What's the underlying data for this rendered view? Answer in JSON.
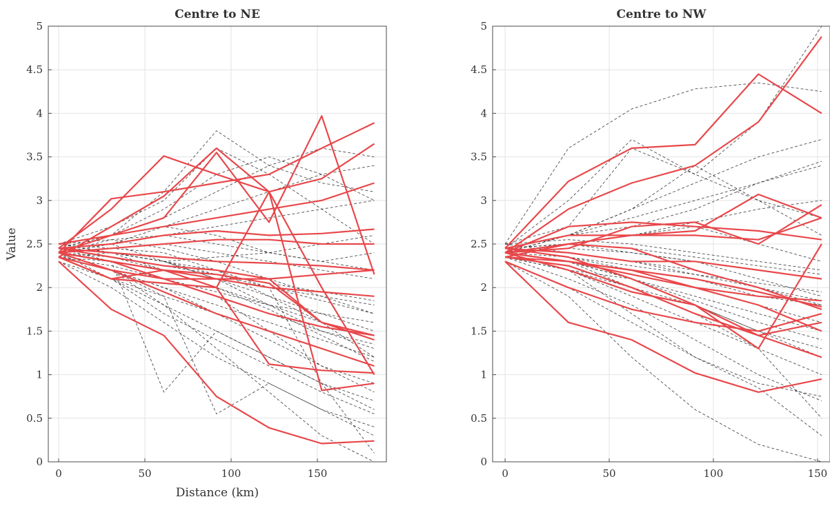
{
  "chart_data": [
    {
      "type": "line",
      "title": "Centre to NE",
      "xlabel": "Distance (km)",
      "ylabel": "Value",
      "xlim": [
        -6,
        190
      ],
      "ylim": [
        0,
        5
      ],
      "xticks": [
        0,
        50,
        100,
        150
      ],
      "xtick_labels": [
        "0",
        "50",
        "100",
        "150"
      ],
      "yticks": [
        0,
        0.5,
        1,
        1.5,
        2,
        2.5,
        3,
        3.5,
        4,
        4.5,
        5
      ],
      "ytick_labels": [
        "0",
        "0.5",
        "1",
        "1.5",
        "2",
        "2.5",
        "3",
        "3.5",
        "4",
        "4.5",
        "5"
      ],
      "grid": true,
      "x": [
        0,
        30.5,
        61,
        91.5,
        122,
        152.5,
        183
      ],
      "series_groups": [
        {
          "style": "dashed",
          "color": "#2b2b2b",
          "lines": [
            [
              2.45,
              2.4,
              2.3,
              2.1,
              1.9,
              1.7,
              1.5
            ],
            [
              2.4,
              2.55,
              2.45,
              2.3,
              2.1,
              1.9,
              1.7
            ],
            [
              2.35,
              2.2,
              2.0,
              1.8,
              1.6,
              1.4,
              1.2
            ],
            [
              2.5,
              2.6,
              2.7,
              2.9,
              3.1,
              3.3,
              3.4
            ],
            [
              2.4,
              2.3,
              2.1,
              1.9,
              1.5,
              1.1,
              0.8
            ],
            [
              2.45,
              2.5,
              2.3,
              2.1,
              1.8,
              1.5,
              1.3
            ],
            [
              2.3,
              2.0,
              1.6,
              1.2,
              0.9,
              0.6,
              0.3
            ],
            [
              2.4,
              2.6,
              2.9,
              3.3,
              3.5,
              3.3,
              3.0
            ],
            [
              2.5,
              2.4,
              2.2,
              2.0,
              1.8,
              1.6,
              1.4
            ],
            [
              2.35,
              2.1,
              1.9,
              1.7,
              1.5,
              1.3,
              1.1
            ],
            [
              2.4,
              2.45,
              2.5,
              2.4,
              2.3,
              2.2,
              2.1
            ],
            [
              2.45,
              2.3,
              0.8,
              1.5,
              1.2,
              0.9,
              0.7
            ],
            [
              2.4,
              2.2,
              1.9,
              0.55,
              0.9,
              0.6,
              0.4
            ],
            [
              2.5,
              2.7,
              3.0,
              3.6,
              3.3,
              2.9,
              2.5
            ],
            [
              2.35,
              2.25,
              2.1,
              1.95,
              1.8,
              1.7,
              1.6
            ],
            [
              2.4,
              2.5,
              2.6,
              2.7,
              2.8,
              2.9,
              3.0
            ],
            [
              2.45,
              2.4,
              2.3,
              2.2,
              2.0,
              0.9,
              0.1
            ],
            [
              2.4,
              2.3,
              2.2,
              2.1,
              2.0,
              1.9,
              1.8
            ],
            [
              2.3,
              2.1,
              1.8,
              1.5,
              1.2,
              0.9,
              0.6
            ],
            [
              2.5,
              2.55,
              2.6,
              2.5,
              2.4,
              2.3,
              2.2
            ],
            [
              2.4,
              2.6,
              3.1,
              3.8,
              3.4,
              3.2,
              3.1
            ],
            [
              2.35,
              2.2,
              2.0,
              1.7,
              1.4,
              1.1,
              0.9
            ],
            [
              2.45,
              2.35,
              2.25,
              2.15,
              2.05,
              1.95,
              1.85
            ],
            [
              2.4,
              2.2,
              1.8,
              1.3,
              0.8,
              0.3,
              0.0
            ],
            [
              2.5,
              2.45,
              2.4,
              2.2,
              1.9,
              1.6,
              1.2
            ],
            [
              2.4,
              2.5,
              2.7,
              2.6,
              2.4,
              2.3,
              2.4
            ],
            [
              2.35,
              2.3,
              2.1,
              1.9,
              1.7,
              1.5,
              1.35
            ],
            [
              2.45,
              2.6,
              2.8,
              3.1,
              3.4,
              3.6,
              3.5
            ],
            [
              2.4,
              2.1,
              1.7,
              1.4,
              1.1,
              0.8,
              0.55
            ],
            [
              2.5,
              2.4,
              2.3,
              2.35,
              2.4,
              2.5,
              2.6
            ],
            [
              2.4,
              2.35,
              2.2,
              2.0,
              1.75,
              1.45,
              1.15
            ],
            [
              2.35,
              2.4,
              2.3,
              2.15,
              2.0,
              1.85,
              1.7
            ]
          ]
        },
        {
          "style": "solid",
          "color": "#e8474a",
          "lines": [
            [
              2.4,
              3.02,
              3.1,
              3.2,
              3.3,
              3.6,
              3.89
            ],
            [
              2.45,
              2.9,
              3.51,
              3.3,
              3.1,
              3.25,
              3.65
            ],
            [
              2.35,
              2.7,
              3.05,
              3.6,
              3.1,
              2.0,
              1.0
            ],
            [
              2.4,
              2.6,
              2.8,
              3.55,
              2.75,
              3.97,
              2.15
            ],
            [
              2.3,
              1.75,
              1.45,
              0.75,
              0.39,
              0.21,
              0.24
            ],
            [
              2.35,
              2.1,
              2.2,
              2.15,
              2.05,
              1.6,
              1.45
            ],
            [
              2.4,
              2.3,
              2.2,
              2.0,
              1.12,
              1.05,
              1.02
            ],
            [
              2.45,
              2.5,
              2.6,
              2.65,
              2.6,
              2.62,
              2.67
            ],
            [
              2.4,
              2.3,
              2.2,
              2.1,
              2.0,
              1.95,
              1.9
            ],
            [
              2.35,
              2.2,
              2.1,
              2.1,
              2.1,
              2.15,
              2.2
            ],
            [
              2.5,
              2.6,
              2.7,
              2.8,
              2.9,
              3.0,
              3.2
            ],
            [
              2.4,
              2.2,
              1.95,
              1.7,
              1.5,
              1.3,
              1.1
            ],
            [
              2.45,
              2.35,
              2.25,
              2.2,
              2.1,
              1.6,
              1.4
            ],
            [
              2.4,
              2.45,
              2.5,
              2.55,
              2.55,
              2.5,
              2.5
            ],
            [
              2.35,
              2.1,
              2.05,
              2.0,
              3.1,
              0.82,
              0.9
            ],
            [
              2.4,
              2.3,
              2.1,
              1.9,
              1.7,
              1.55,
              1.45
            ],
            [
              2.45,
              2.4,
              2.35,
              2.3,
              2.28,
              2.25,
              2.2
            ]
          ]
        }
      ]
    },
    {
      "type": "line",
      "title": "Centre to NW",
      "xlabel": "",
      "ylabel": "",
      "xlim": [
        -6,
        156
      ],
      "ylim": [
        0,
        5
      ],
      "xticks": [
        0,
        50,
        100,
        150
      ],
      "xtick_labels": [
        "0",
        "50",
        "100",
        "150"
      ],
      "yticks": [
        0,
        0.5,
        1,
        1.5,
        2,
        2.5,
        3,
        3.5,
        4,
        4.5,
        5
      ],
      "ytick_labels": [
        "0",
        "0.5",
        "1",
        "1.5",
        "2",
        "2.5",
        "3",
        "3.5",
        "4",
        "4.5",
        "5"
      ],
      "grid": true,
      "x": [
        0,
        30.4,
        60.8,
        91.2,
        121.6,
        152
      ],
      "series_groups": [
        {
          "style": "dashed",
          "color": "#2b2b2b",
          "lines": [
            [
              2.5,
              3.6,
              4.05,
              4.28,
              4.35,
              4.25
            ],
            [
              2.45,
              3.0,
              3.7,
              3.3,
              3.9,
              5.0
            ],
            [
              2.4,
              2.6,
              2.9,
              3.2,
              3.5,
              3.7
            ],
            [
              2.45,
              2.6,
              2.7,
              2.9,
              3.2,
              3.45
            ],
            [
              2.4,
              2.5,
              2.4,
              2.3,
              2.1,
              1.9
            ],
            [
              2.35,
              2.2,
              2.1,
              1.9,
              1.7,
              1.5
            ],
            [
              2.3,
              1.9,
              1.2,
              0.6,
              0.2,
              0.0
            ],
            [
              2.4,
              2.3,
              2.1,
              1.8,
              1.5,
              1.2
            ],
            [
              2.45,
              2.6,
              2.8,
              3.0,
              3.2,
              3.4
            ],
            [
              2.5,
              2.4,
              2.3,
              2.2,
              2.0,
              1.8
            ],
            [
              2.4,
              2.2,
              1.9,
              1.6,
              1.3,
              1.0
            ],
            [
              2.35,
              2.1,
              1.8,
              1.4,
              1.0,
              0.7
            ],
            [
              2.4,
              2.5,
              2.6,
              2.7,
              2.5,
              2.3
            ],
            [
              2.45,
              2.35,
              2.25,
              2.15,
              2.05,
              1.95
            ],
            [
              2.4,
              2.3,
              2.0,
              1.7,
              1.3,
              0.5
            ],
            [
              2.5,
              2.7,
              3.6,
              3.3,
              3.0,
              2.8
            ],
            [
              2.4,
              2.45,
              2.4,
              2.3,
              2.2,
              2.1
            ],
            [
              2.35,
              2.2,
              2.0,
              1.8,
              1.5,
              1.3
            ],
            [
              2.45,
              2.5,
              2.6,
              2.75,
              2.9,
              3.0
            ],
            [
              2.4,
              2.2,
              1.7,
              1.2,
              0.85,
              0.3
            ],
            [
              2.5,
              2.55,
              2.5,
              2.4,
              2.3,
              2.2
            ],
            [
              2.4,
              2.35,
              2.2,
              2.1,
              1.9,
              1.8
            ],
            [
              2.35,
              2.3,
              2.15,
              2.0,
              1.8,
              1.6
            ],
            [
              2.45,
              2.4,
              2.3,
              2.15,
              2.0,
              1.85
            ],
            [
              2.4,
              2.6,
              2.9,
              3.4,
              3.0,
              2.6
            ],
            [
              2.3,
              2.0,
              1.6,
              1.2,
              0.9,
              0.75
            ],
            [
              2.45,
              2.5,
              2.45,
              2.35,
              2.25,
              2.15
            ],
            [
              2.4,
              2.3,
              2.1,
              1.85,
              1.6,
              1.4
            ]
          ]
        },
        {
          "style": "solid",
          "color": "#e8474a",
          "lines": [
            [
              2.45,
              3.22,
              3.6,
              3.64,
              4.45,
              4.0
            ],
            [
              2.4,
              2.9,
              3.2,
              3.4,
              3.9,
              4.88
            ],
            [
              2.4,
              2.7,
              2.75,
              2.7,
              2.65,
              2.55
            ],
            [
              2.45,
              2.6,
              2.6,
              2.6,
              2.55,
              2.8
            ],
            [
              2.35,
              2.5,
              2.6,
              2.65,
              3.07,
              2.8
            ],
            [
              2.4,
              2.45,
              2.7,
              2.75,
              2.5,
              2.95
            ],
            [
              2.35,
              2.3,
              2.2,
              2.1,
              1.95,
              1.78
            ],
            [
              2.3,
              2.0,
              1.75,
              1.6,
              1.5,
              1.7
            ],
            [
              2.4,
              2.2,
              1.95,
              1.8,
              1.45,
              1.6
            ],
            [
              2.3,
              1.6,
              1.4,
              1.02,
              0.8,
              0.95
            ],
            [
              2.4,
              2.3,
              2.2,
              2.0,
              1.8,
              1.5
            ],
            [
              2.45,
              2.35,
              2.1,
              1.8,
              1.3,
              2.5
            ],
            [
              2.35,
              2.25,
              2.0,
              1.7,
              1.45,
              1.2
            ],
            [
              2.4,
              2.5,
              2.45,
              2.2,
              2.0,
              1.75
            ],
            [
              2.45,
              2.4,
              2.3,
              2.3,
              2.2,
              2.1
            ],
            [
              2.4,
              2.3,
              2.15,
              2.0,
              1.9,
              1.85
            ]
          ]
        }
      ]
    }
  ]
}
